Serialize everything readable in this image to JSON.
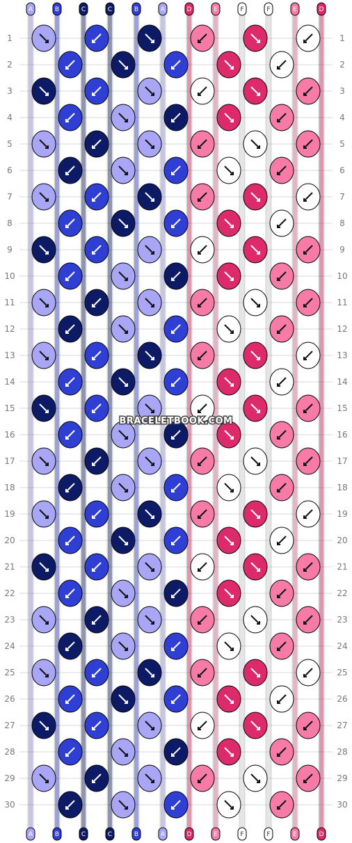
{
  "watermark": "BRACELETBOOK.COM",
  "strand_labels": [
    "A",
    "B",
    "C",
    "C",
    "B",
    "A",
    "D",
    "E",
    "F",
    "F",
    "E",
    "D"
  ],
  "row_numbers": [
    "1",
    "2",
    "3",
    "4",
    "5",
    "6",
    "7",
    "8",
    "9",
    "10",
    "11",
    "12",
    "13",
    "14",
    "15",
    "16",
    "17",
    "18",
    "19",
    "20",
    "21",
    "22",
    "23",
    "24",
    "25",
    "26",
    "27",
    "28",
    "29",
    "30"
  ],
  "colors": {
    "A": "#a9a6f6",
    "B": "#2f3fd4",
    "C": "#0d1a66",
    "D": "#dd2a6b",
    "E": "#f87aa7",
    "F": "#ffffff",
    "outline": "#000000",
    "grid": "#d9d9d9"
  },
  "pattern": {
    "strands": 12,
    "rows": 30,
    "knot_sequence_note_none": ""
  }
}
